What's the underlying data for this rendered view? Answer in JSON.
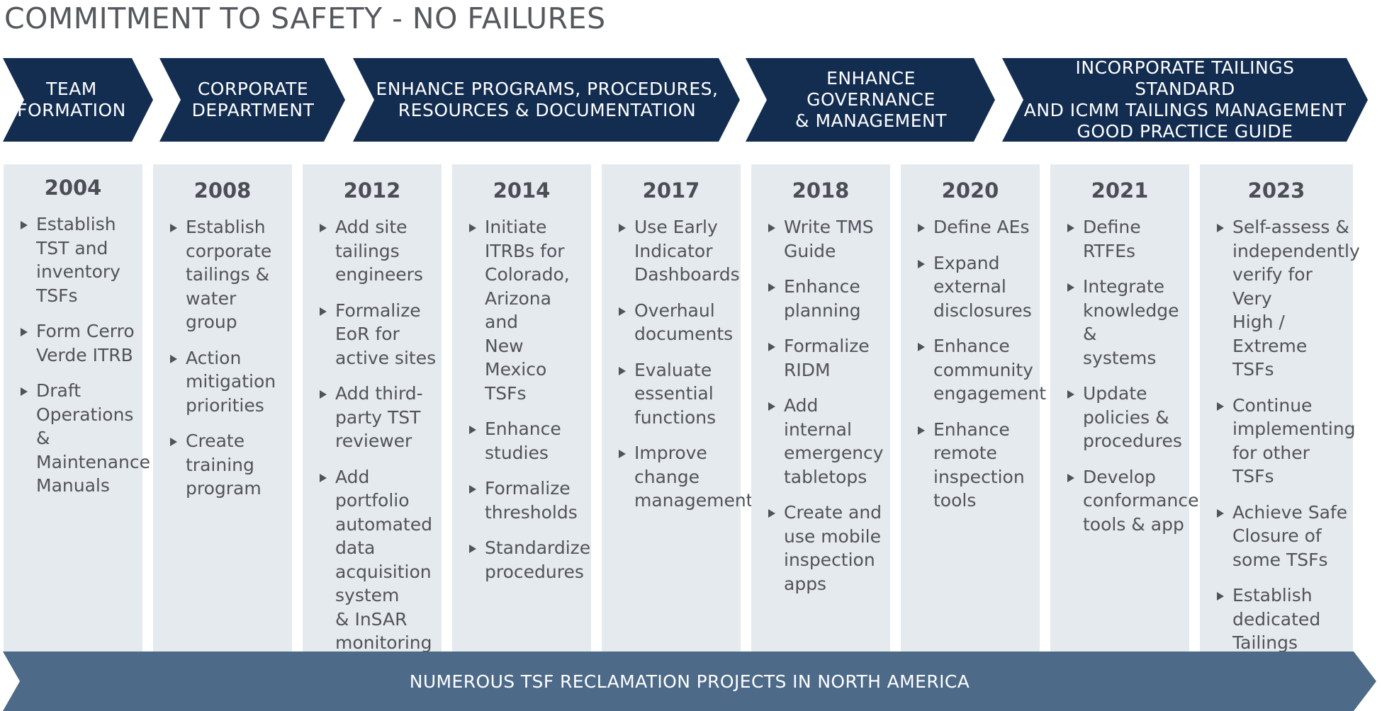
{
  "title": "COMMITMENT TO SAFETY - NO FAILURES",
  "phases": [
    {
      "label": "TEAM\nFORMATION"
    },
    {
      "label": "CORPORATE\nDEPARTMENT"
    },
    {
      "label": "ENHANCE PROGRAMS, PROCEDURES,\nRESOURCES & DOCUMENTATION"
    },
    {
      "label": "ENHANCE GOVERNANCE\n& MANAGEMENT"
    },
    {
      "label": "INCORPORATE TAILINGS STANDARD\nAND ICMM TAILINGS MANAGEMENT\nGOOD PRACTICE GUIDE"
    }
  ],
  "years": [
    {
      "year": "2004",
      "items": [
        "Establish\nTST and\ninventory\nTSFs",
        "Form Cerro\nVerde ITRB",
        "Draft\nOperations &\nMaintenance\nManuals"
      ]
    },
    {
      "year": "2008",
      "items": [
        "Establish\ncorporate\ntailings &\nwater group",
        "Action\nmitigation\npriorities",
        "Create\ntraining\nprogram"
      ]
    },
    {
      "year": "2012",
      "items": [
        "Add site\ntailings\nengineers",
        "Formalize\nEoR for\nactive sites",
        "Add third-\nparty TST\nreviewer",
        "Add portfolio\nautomated\ndata\nacquisition\nsystem\n& InSAR\nmonitoring"
      ]
    },
    {
      "year": "2014",
      "items": [
        "Initiate\nITRBs for\nColorado,\nArizona and\nNew Mexico\nTSFs",
        "Enhance\nstudies",
        "Formalize\nthresholds",
        "Standardize\nprocedures"
      ]
    },
    {
      "year": "2017",
      "items": [
        "Use Early\nIndicator\nDashboards",
        "Overhaul\ndocuments",
        "Evaluate\nessential\nfunctions",
        "Improve\nchange\nmanagement"
      ]
    },
    {
      "year": "2018",
      "items": [
        "Write TMS\nGuide",
        "Enhance\nplanning",
        "Formalize\nRIDM",
        "Add internal\nemergency\ntabletops",
        "Create and\nuse mobile\ninspection\napps"
      ]
    },
    {
      "year": "2020",
      "items": [
        "Define AEs",
        "Expand\nexternal\ndisclosures",
        "Enhance\ncommunity\nengagement",
        "Enhance\nremote\ninspection\ntools"
      ]
    },
    {
      "year": "2021",
      "items": [
        "Define RTFEs",
        "Integrate\nknowledge &\nsystems",
        "Update\npolicies &\nprocedures",
        "Develop\nconformance\ntools & app"
      ]
    },
    {
      "year": "2023",
      "items": [
        "Self-assess &\nindependently\nverify for Very\nHigh / Extreme\nTSFs",
        "Continue\nimplementing\nfor other TSFs",
        "Achieve Safe\nClosure of\nsome TSFs",
        "Establish\ndedicated\nTailings\nInnovation\nGroup"
      ]
    }
  ],
  "footer": "NUMEROUS TSF RECLAMATION PROJECTS IN NORTH AMERICA",
  "colors": {
    "chevron": "#132d51",
    "column": "#e5eaef",
    "footer_bar": "#4d6a89",
    "title_text": "#55585c",
    "body_text": "#505459"
  }
}
